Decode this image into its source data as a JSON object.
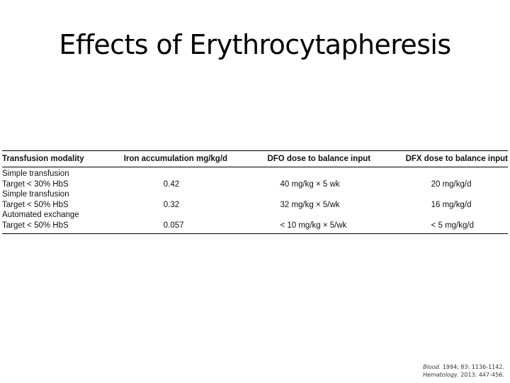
{
  "title": "Effects of Erythrocytapheresis",
  "table": {
    "headers": [
      "Transfusion modality",
      "Iron accumulation mg/kg/d",
      "DFO dose to balance input",
      "DFX dose to balance input"
    ],
    "rows": [
      [
        "Simple transfusion",
        "",
        "",
        ""
      ],
      [
        "Target < 30% HbS",
        "0.42",
        "40 mg/kg × 5 wk",
        "20 mg/kg/d"
      ],
      [
        "Simple transfusion",
        "",
        "",
        ""
      ],
      [
        "Target < 50% HbS",
        "0.32",
        "32 mg/kg × 5/wk",
        "16 mg/kg/d"
      ],
      [
        "Automated exchange",
        "",
        "",
        ""
      ],
      [
        "Target < 50% HbS",
        "0.057",
        "< 10 mg/kg × 5/wk",
        "< 5 mg/kg/d"
      ]
    ]
  },
  "citations": [
    {
      "journal": "Blood.",
      "detail": "1994; 83: 1136-1142."
    },
    {
      "journal": "Hematology.",
      "detail": "2013: 447-456."
    }
  ]
}
